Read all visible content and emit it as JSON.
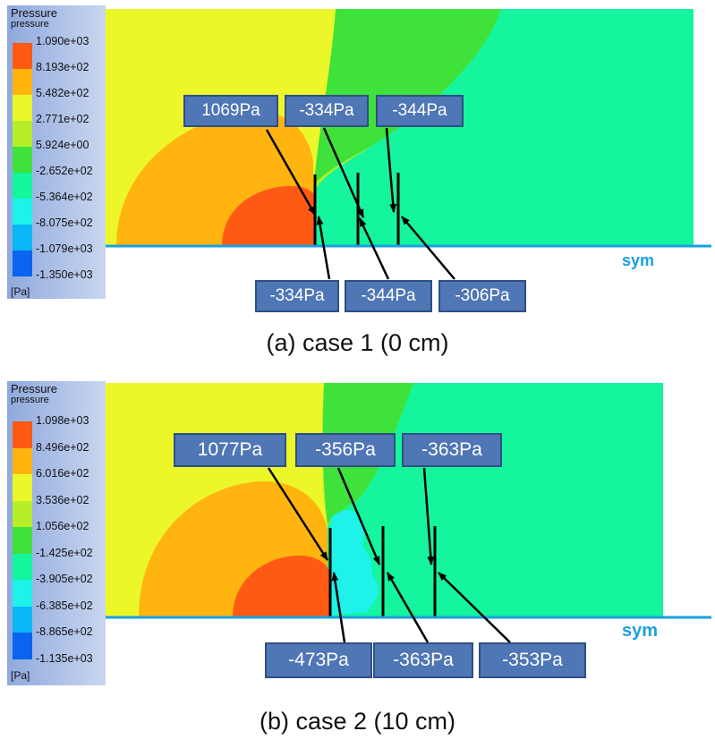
{
  "legend_a": {
    "title": "Pressure",
    "subtitle": "pressure",
    "unit": "[Pa]",
    "ticks": [
      "1.090e+03",
      "8.193e+02",
      "5.482e+02",
      "2.771e+02",
      "5.924e+00",
      "-2.652e+02",
      "-5.364e+02",
      "-8.075e+02",
      "-1.079e+03",
      "-1.350e+03"
    ]
  },
  "legend_b": {
    "title": "Pressure",
    "subtitle": "pressure",
    "unit": "[Pa]",
    "ticks": [
      "1.098e+03",
      "8.496e+02",
      "6.016e+02",
      "3.536e+02",
      "1.056e+02",
      "-1.425e+02",
      "-3.905e+02",
      "-6.385e+02",
      "-8.865e+02",
      "-1.135e+03"
    ]
  },
  "colors": {
    "band1": "#ff5a14",
    "band2": "#ffb40f",
    "band3": "#ecf72a",
    "band4": "#b6ee2a",
    "band5": "#3fe23a",
    "band6": "#14f59e",
    "band7": "#1ff2e8",
    "band8": "#0ab6f4",
    "band9": "#0a64f0",
    "sym": "#19a0e0"
  },
  "panel_a": {
    "top_labels": [
      "1069Pa",
      "-334Pa",
      "-344Pa"
    ],
    "bottom_labels": [
      "-334Pa",
      "-344Pa",
      "-306Pa"
    ],
    "sym": "sym",
    "caption": "(a) case 1 (0 cm)"
  },
  "panel_b": {
    "top_labels": [
      "1077Pa",
      "-356Pa",
      "-363Pa"
    ],
    "bottom_labels": [
      "-473Pa",
      "-363Pa",
      "-353Pa"
    ],
    "sym": "sym",
    "caption": "(b) case 2 (10 cm)"
  }
}
